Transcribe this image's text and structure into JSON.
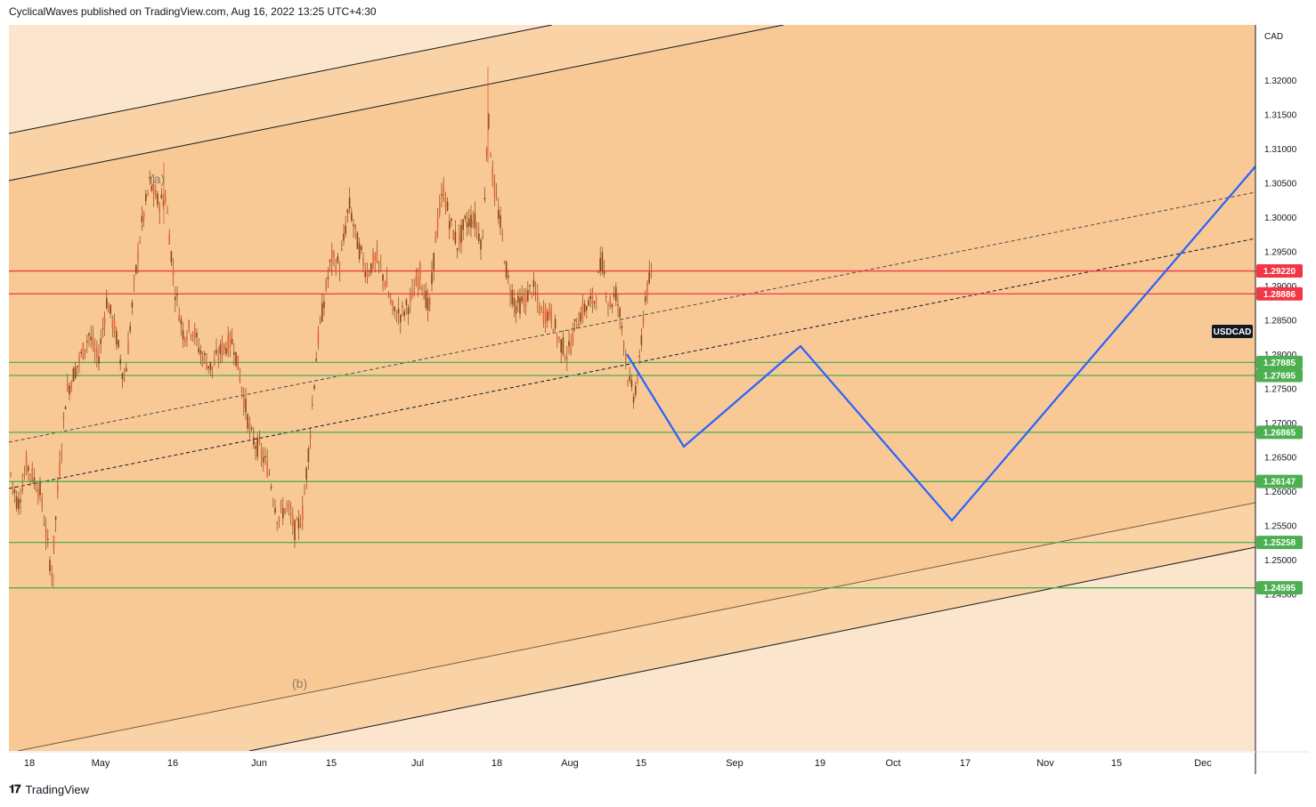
{
  "header": {
    "publisher_line": "CyclicalWaves published on TradingView.com, Aug 16, 2022 13:25 UTC+4:30"
  },
  "footer": {
    "brand": "TradingView"
  },
  "chart_data": {
    "type": "candlestick",
    "symbol": "USDCAD",
    "currency_label": "CAD",
    "y_ticks": [
      "1.32000",
      "1.31500",
      "1.31000",
      "1.30500",
      "1.30000",
      "1.29500",
      "1.29000",
      "1.28500",
      "1.28000",
      "1.27500",
      "1.27000",
      "1.26500",
      "1.26000",
      "1.25500",
      "1.25000",
      "1.24500"
    ],
    "x_ticks": [
      "18",
      "May",
      "16",
      "Jun",
      "15",
      "Jul",
      "18",
      "Aug",
      "15",
      "Sep",
      "19",
      "Oct",
      "17",
      "Nov",
      "15",
      "Dec"
    ],
    "resistance_levels": [
      {
        "value": "1.29220",
        "color": "#f23645"
      },
      {
        "value": "1.28886",
        "color": "#f23645"
      }
    ],
    "support_levels": [
      {
        "value": "1.27885",
        "color": "#4caf50"
      },
      {
        "value": "1.27695",
        "color": "#4caf50"
      },
      {
        "value": "1.26865",
        "color": "#4caf50"
      },
      {
        "value": "1.26147",
        "color": "#4caf50"
      },
      {
        "value": "1.25258",
        "color": "#4caf50"
      },
      {
        "value": "1.24595",
        "color": "#4caf50"
      }
    ],
    "wave_labels": [
      "(a)",
      "(b)"
    ],
    "projection_color": "#2962ff",
    "candle_color": "#8b4513",
    "band_colors": {
      "outer": "#fce5cd",
      "middle": "#f9d3a5",
      "inner": "#f8c995"
    }
  }
}
